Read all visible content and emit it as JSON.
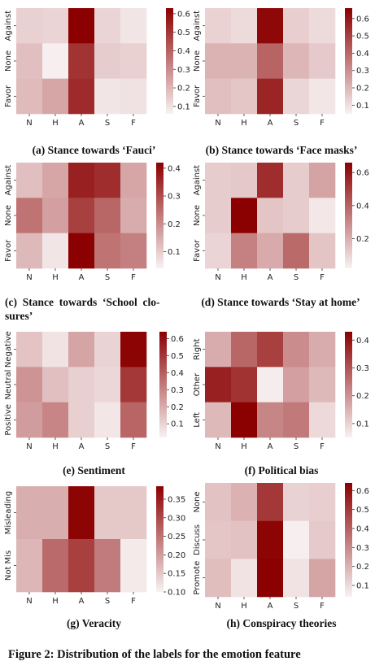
{
  "figure_caption": "Figure 2: Distribution of the labels for the emotion feature",
  "chart_data": [
    {
      "type": "heatmap",
      "panel": "a",
      "caption": "(a) Stance towards ‘Fauci’",
      "rows": [
        "Against",
        "None",
        "Favor"
      ],
      "columns": [
        "N",
        "H",
        "A",
        "S",
        "F"
      ],
      "values": [
        [
          0.14,
          0.13,
          0.63,
          0.13,
          0.09
        ],
        [
          0.18,
          0.07,
          0.51,
          0.15,
          0.14
        ],
        [
          0.19,
          0.24,
          0.53,
          0.09,
          0.1
        ]
      ],
      "colorbar": {
        "min": 0.06,
        "max": 0.63,
        "ticks": [
          "0.1",
          "0.2",
          "0.3",
          "0.4",
          "0.5",
          "0.6"
        ]
      }
    },
    {
      "type": "heatmap",
      "panel": "b",
      "caption": "(b) Stance towards ‘Face masks’",
      "rows": [
        "Against",
        "None",
        "Favor"
      ],
      "columns": [
        "N",
        "H",
        "A",
        "S",
        "F"
      ],
      "values": [
        [
          0.13,
          0.11,
          0.64,
          0.14,
          0.11
        ],
        [
          0.21,
          0.21,
          0.41,
          0.2,
          0.15
        ],
        [
          0.18,
          0.16,
          0.57,
          0.12,
          0.08
        ]
      ],
      "colorbar": {
        "min": 0.05,
        "max": 0.66,
        "ticks": [
          "0.1",
          "0.2",
          "0.3",
          "0.4",
          "0.5",
          "0.6"
        ]
      }
    },
    {
      "type": "heatmap",
      "panel": "c",
      "caption": "(c) Stance towards ‘School closures’",
      "caption_lines": [
        "(c)  Stance  towards  ‘School  clo-",
        "sures’"
      ],
      "rows": [
        "Against",
        "None",
        "Favor"
      ],
      "columns": [
        "N",
        "H",
        "A",
        "S",
        "F"
      ],
      "values": [
        [
          0.12,
          0.16,
          0.37,
          0.35,
          0.16
        ],
        [
          0.24,
          0.17,
          0.32,
          0.26,
          0.15
        ],
        [
          0.13,
          0.06,
          0.42,
          0.24,
          0.22
        ]
      ],
      "colorbar": {
        "min": 0.04,
        "max": 0.42,
        "ticks": [
          "0.1",
          "0.2",
          "0.3",
          "0.4"
        ]
      }
    },
    {
      "type": "heatmap",
      "panel": "d",
      "caption": "(d) Stance towards ‘Stay at home’",
      "rows": [
        "Against",
        "None",
        "Favor"
      ],
      "columns": [
        "N",
        "H",
        "A",
        "S",
        "F"
      ],
      "values": [
        [
          0.12,
          0.13,
          0.54,
          0.12,
          0.23
        ],
        [
          0.12,
          0.66,
          0.14,
          0.12,
          0.05
        ],
        [
          0.1,
          0.32,
          0.21,
          0.38,
          0.14
        ]
      ],
      "colorbar": {
        "min": 0.02,
        "max": 0.66,
        "ticks": [
          "0.2",
          "0.4",
          "0.6"
        ]
      }
    },
    {
      "type": "heatmap",
      "panel": "e",
      "caption": "(e) Sentiment",
      "rows": [
        "Negative",
        "Neutral",
        "Positive"
      ],
      "columns": [
        "N",
        "H",
        "A",
        "S",
        "F"
      ],
      "values": [
        [
          0.14,
          0.06,
          0.22,
          0.1,
          0.63
        ],
        [
          0.26,
          0.15,
          0.11,
          0.09,
          0.5
        ],
        [
          0.24,
          0.3,
          0.11,
          0.05,
          0.38
        ]
      ],
      "colorbar": {
        "min": 0.02,
        "max": 0.64,
        "ticks": [
          "0.1",
          "0.2",
          "0.3",
          "0.4",
          "0.5",
          "0.6"
        ]
      }
    },
    {
      "type": "heatmap",
      "panel": "f",
      "caption": "(f) Political bias",
      "rows": [
        "Right",
        "Other",
        "Left"
      ],
      "columns": [
        "N",
        "H",
        "A",
        "S",
        "F"
      ],
      "values": [
        [
          0.16,
          0.27,
          0.33,
          0.21,
          0.16
        ],
        [
          0.38,
          0.35,
          0.06,
          0.18,
          0.14
        ],
        [
          0.14,
          0.43,
          0.22,
          0.24,
          0.09
        ]
      ],
      "colorbar": {
        "min": 0.05,
        "max": 0.43,
        "ticks": [
          "0.1",
          "0.2",
          "0.3",
          "0.4"
        ]
      }
    },
    {
      "type": "heatmap",
      "panel": "g",
      "caption": "(g) Veracity",
      "rows": [
        "Misleading",
        "Not Mis"
      ],
      "columns": [
        "N",
        "H",
        "A",
        "S",
        "F"
      ],
      "values": [
        [
          0.18,
          0.18,
          0.38,
          0.15,
          0.15
        ],
        [
          0.17,
          0.26,
          0.31,
          0.24,
          0.11
        ]
      ],
      "colorbar": {
        "min": 0.1,
        "max": 0.385,
        "ticks": [
          "0.10",
          "0.15",
          "0.20",
          "0.25",
          "0.30",
          "0.35"
        ]
      }
    },
    {
      "type": "heatmap",
      "panel": "h",
      "caption": "(h) Conspiracy theories",
      "rows": [
        "None",
        "Discuss",
        "Promote"
      ],
      "columns": [
        "N",
        "H",
        "A",
        "S",
        "F"
      ],
      "values": [
        [
          0.16,
          0.2,
          0.5,
          0.12,
          0.13
        ],
        [
          0.15,
          0.16,
          0.63,
          0.05,
          0.14
        ],
        [
          0.17,
          0.08,
          0.64,
          0.08,
          0.23
        ]
      ],
      "colorbar": {
        "min": 0.04,
        "max": 0.64,
        "ticks": [
          "0.1",
          "0.2",
          "0.3",
          "0.4",
          "0.5",
          "0.6"
        ]
      }
    }
  ]
}
